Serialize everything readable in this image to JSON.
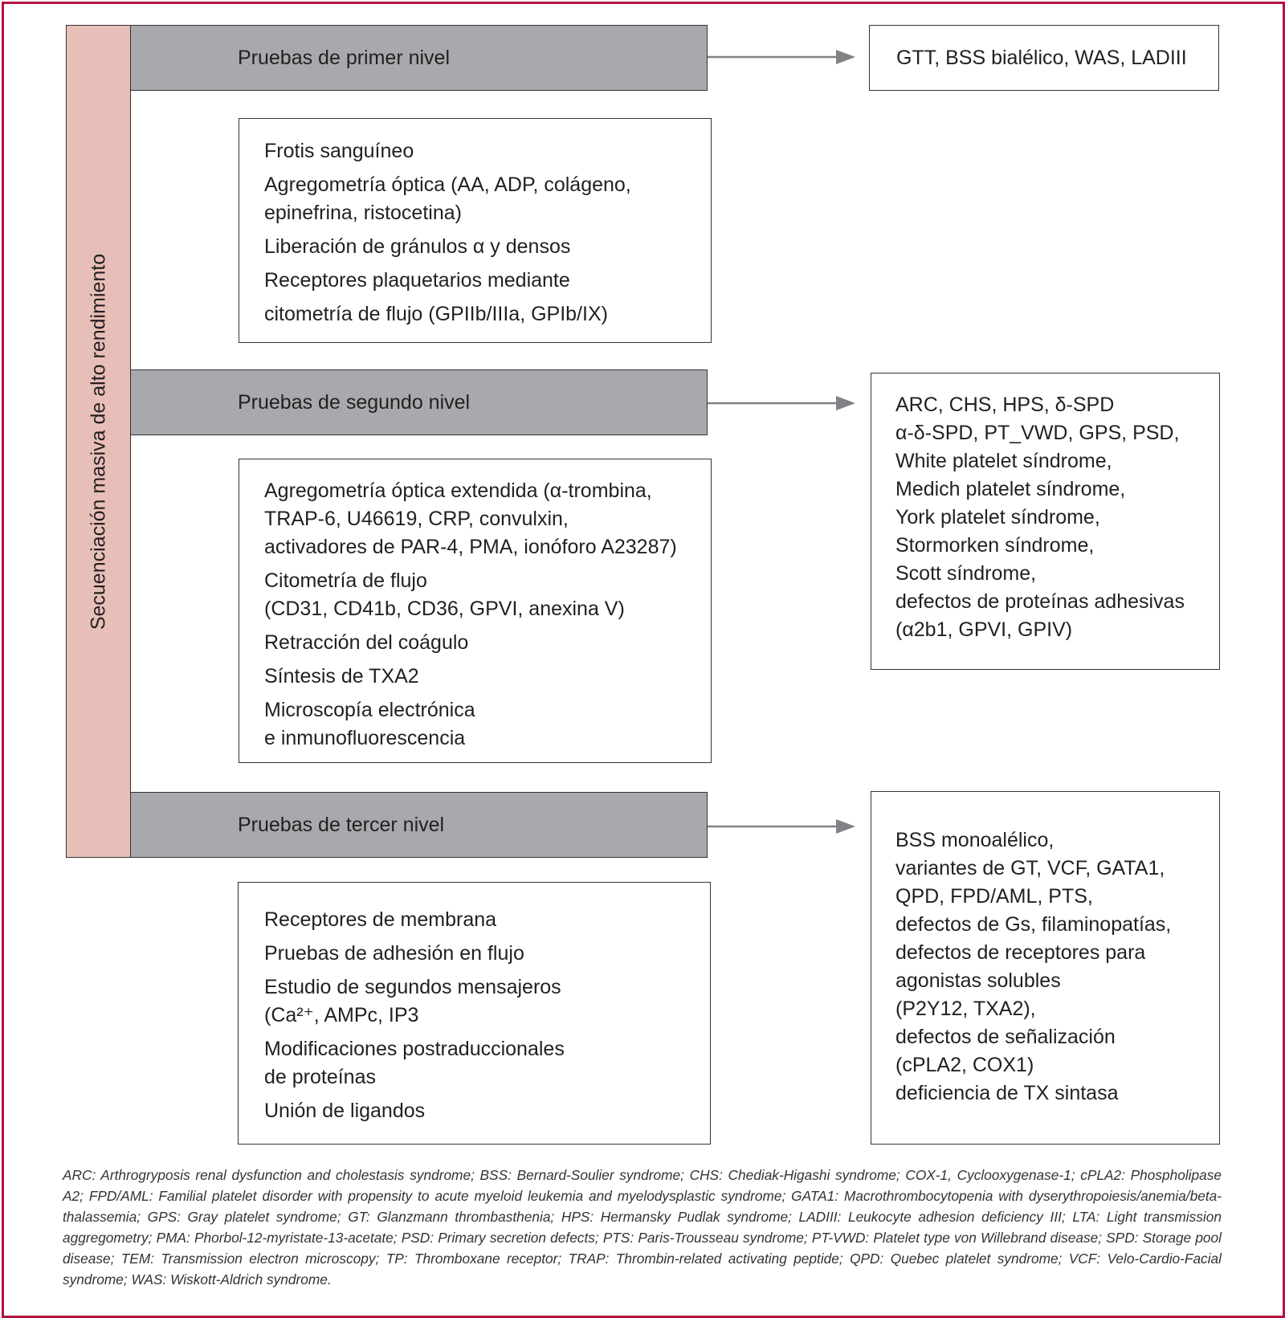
{
  "sidebar": {
    "label": "Secuenciación masiva de alto rendimiento"
  },
  "levels": [
    {
      "title": "Pruebas de primer nivel",
      "tests": [
        [
          "Frotis sanguíneo"
        ],
        [
          "Agregometría óptica (AA, ADP, colágeno,",
          "epinefrina, ristocetina)"
        ],
        [
          "Liberación de gránulos α y densos"
        ],
        [
          "Receptores plaquetarios mediante",
          "citometría de flujo (GPIIb/IIIa, GPIb/IX)"
        ]
      ],
      "result": [
        "GTT, BSS bialélico, WAS, LADIII"
      ]
    },
    {
      "title": "Pruebas de segundo nivel",
      "tests": [
        [
          "Agregometría óptica extendida (α-trombina,",
          "TRAP-6, U46619, CRP, convulxin,",
          "activadores de PAR-4, PMA, ionóforo A23287)"
        ],
        [
          "Citometría de flujo",
          "(CD31, CD41b, CD36, GPVI, anexina V)"
        ],
        [
          "Retracción del coágulo"
        ],
        [
          "Síntesis de TXA2"
        ],
        [
          "Microscopía electrónica",
          "e inmunofluorescencia"
        ]
      ],
      "result": [
        "ARC, CHS, HPS, δ-SPD",
        "α-δ-SPD, PT_VWD, GPS, PSD,",
        "White platelet síndrome,",
        "Medich platelet síndrome,",
        "York platelet síndrome,",
        "Stormorken síndrome,",
        "Scott síndrome,",
        "defectos de proteínas adhesivas",
        "(α2b1, GPVI, GPIV)"
      ]
    },
    {
      "title": "Pruebas de tercer nivel",
      "tests": [
        [
          "Receptores de membrana"
        ],
        [
          "Pruebas de adhesión en flujo"
        ],
        [
          "Estudio de segundos mensajeros",
          "(Ca²⁺, AMPc, IP3"
        ],
        [
          "Modificaciones postraduccionales",
          "de proteínas"
        ],
        [
          "Unión de ligandos"
        ]
      ],
      "result": [
        "BSS monoalélico,",
        "variantes de GT, VCF, GATA1,",
        "QPD, FPD/AML, PTS,",
        "defectos de Gs, filaminopatías,",
        "defectos de receptores para",
        "agonistas solubles",
        "(P2Y12, TXA2),",
        "defectos de señalización",
        "(cPLA2, COX1)",
        "deficiencia de TX sintasa"
      ]
    }
  ],
  "footnote": "ARC: Arthrogryposis renal dysfunction and cholestasis syndrome; BSS: Bernard-Soulier syndrome; CHS: Chediak-Higashi syndrome; COX-1, Cyclooxygenase-1; cPLA2: Phospholipase A2; FPD/AML: Familial platelet disorder with propensity to acute myeloid leukemia and myelodysplastic syndrome; GATA1: Macrothrombocytopenia with dyserythropoiesis/anemia/beta-thalassemia; GPS: Gray platelet syndrome; GT: Glanzmann thrombasthenia; HPS: Hermansky Pudlak syndrome; LADIII: Leukocyte adhesion deficiency III; LTA: Light transmission aggregometry; PMA: Phorbol-12-myristate-13-acetate; PSD: Primary secretion defects; PTS: Paris-Trousseau syndrome; PT-VWD: Platelet type von Willebrand disease; SPD: Storage pool disease; TEM: Transmission electron microscopy; TP: Thromboxane receptor; TRAP: Thrombin-related activating peptide; QPD: Quebec platelet syndrome; VCF: Velo-Cardio-Facial syndrome; WAS: Wiskott-Aldrich syndrome.",
  "colors": {
    "border": "#b5123e",
    "sidebar": "#e8bfb8",
    "level_bar": "#a7a9ac",
    "arrow": "#808285"
  }
}
